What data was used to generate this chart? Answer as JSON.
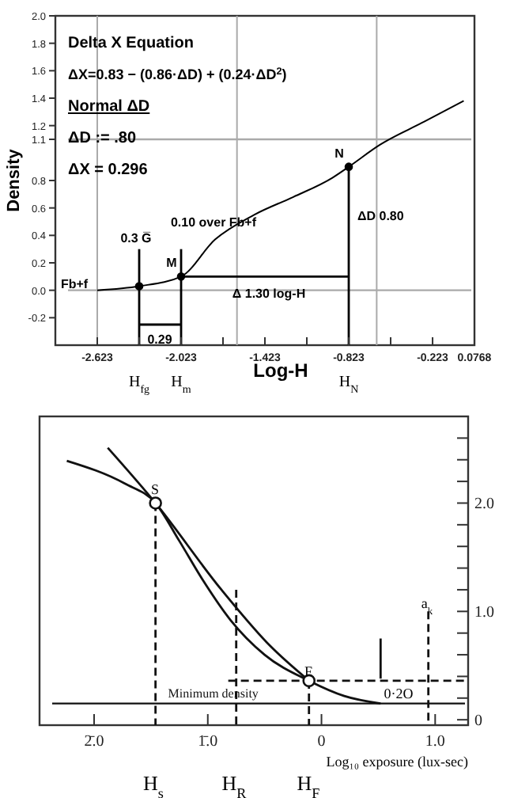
{
  "chart_data": [
    {
      "type": "line",
      "xlabel": "Log-H",
      "ylabel": "Density",
      "xlim": [
        -2.923,
        0.0768
      ],
      "ylim": [
        -0.4,
        2.0
      ],
      "xticks": [
        -2.623,
        {
          "value": -2.323,
          "label": null
        },
        -2.023,
        {
          "value": -1.723,
          "label": null
        },
        -1.423,
        {
          "value": -1.123,
          "label": null
        },
        -0.823,
        {
          "value": -0.523,
          "label": null
        },
        -0.223,
        0.0768
      ],
      "yticks": [
        -0.2,
        {
          "value": 0,
          "label": "0.0"
        },
        0.2,
        0.4,
        0.6,
        0.8,
        1.1,
        1.2,
        1.4,
        1.6,
        1.8,
        {
          "value": 2,
          "label": "2.0"
        }
      ],
      "series": [
        {
          "color": "#000000",
          "x": [
            -2.623,
            -2.323,
            -2.023,
            -1.78,
            -1.5,
            -1.22,
            -0.94,
            -0.823,
            -0.6,
            -0.3,
            0.0
          ],
          "values": [
            0.0,
            0.03,
            0.1,
            0.37,
            0.55,
            0.68,
            0.82,
            0.9,
            1.06,
            1.22,
            1.38
          ]
        },
        {
          "color": "#000000",
          "x": [
            -2.323,
            -2.323
          ],
          "values": [
            0.3,
            -0.4
          ]
        },
        {
          "color": "#000000",
          "x": [
            -2.023,
            -2.023
          ],
          "values": [
            0.3,
            -0.4
          ]
        },
        {
          "color": "#000000",
          "x": [
            -2.023,
            -0.823
          ],
          "values": [
            0.1,
            0.1
          ]
        },
        {
          "color": "#000000",
          "x": [
            -0.823,
            -0.823
          ],
          "values": [
            0.9,
            -0.4
          ]
        },
        {
          "color": "#000000",
          "x": [
            -2.323,
            -2.023
          ],
          "values": [
            -0.25,
            -0.25
          ]
        },
        {
          "type": "scatter",
          "color": "#000000",
          "marker": "circle",
          "x": [
            -2.323,
            -2.023,
            -0.823
          ],
          "values": [
            0.03,
            0.1,
            0.9
          ]
        }
      ],
      "ref_lines": [
        {
          "axis": "x",
          "value": -2.623,
          "color": "#aaaaaa"
        },
        {
          "axis": "x",
          "value": -1.623,
          "color": "#aaaaaa"
        },
        {
          "axis": "x",
          "value": -0.623,
          "color": "#aaaaaa"
        },
        {
          "axis": "y",
          "value": 1.1,
          "color": "#aaaaaa"
        },
        {
          "axis": "y",
          "value": 0.0,
          "color": "#aaaaaa"
        }
      ],
      "annotations": [
        "Delta X Equation",
        "ΔX=0.83 − (0.86·ΔD) + (0.24·ΔD$^{2}$)",
        "Normal ΔD",
        "ΔD := .80",
        "ΔX = 0.296",
        "0.10 over Fb+f",
        "0.3 G̅",
        "Fb+f",
        "0.29",
        "Δ 1.30 log-H",
        "ΔD 0.80",
        "H$_{fg}$",
        "H$_{m}$",
        "H$_{N}$",
        {
          "text": "N",
          "x": -0.823,
          "y": 0.9
        },
        {
          "text": "M",
          "x": -2.023,
          "y": 0.1
        }
      ]
    },
    {
      "type": "line",
      "xlabel": "Log₁₀ exposure (lux-sec)",
      "xlim": [
        -2.48,
        1.29
      ],
      "y2lim": [
        -0.05,
        2.8
      ],
      "xticks": [
        {
          "value": -2.0,
          "label": "2̄.0"
        },
        {
          "value": -1.0,
          "label": "1̄.0"
        },
        0,
        {
          "value": 1,
          "label": "1.0"
        }
      ],
      "y2ticks": [
        0,
        {
          "value": 0.2,
          "label": null
        },
        {
          "value": 0.4,
          "label": null
        },
        {
          "value": 0.6,
          "label": null
        },
        {
          "value": 0.8,
          "label": null
        },
        {
          "value": 1,
          "label": "1.0"
        },
        {
          "value": 1.2,
          "label": null
        },
        {
          "value": 1.4,
          "label": null
        },
        {
          "value": 1.6,
          "label": null
        },
        {
          "value": 1.8,
          "label": null
        },
        {
          "value": 2,
          "label": "2.0"
        },
        {
          "value": 2.2,
          "label": null
        },
        {
          "value": 2.4,
          "label": null
        },
        {
          "value": 2.6,
          "label": null
        }
      ],
      "series": [
        {
          "axis": "y2",
          "color": "#111111",
          "x": [
            -2.24,
            -1.73,
            -1.46,
            -1.25,
            -1.05,
            -0.8,
            -0.5,
            -0.11,
            0.2,
            0.52
          ],
          "values": [
            2.39,
            2.18,
            2.0,
            1.65,
            1.3,
            0.92,
            0.6,
            0.36,
            0.22,
            0.15
          ]
        },
        {
          "axis": "y2",
          "color": "#111111",
          "x": [
            -1.88,
            -1.46,
            -0.88,
            -0.45,
            -0.11
          ],
          "values": [
            2.51,
            2.0,
            1.2,
            0.68,
            0.36
          ]
        },
        {
          "axis": "y2",
          "color": "#111111",
          "line_style": "dashed",
          "x": [
            -1.46,
            -1.46
          ],
          "values": [
            2.0,
            -0.05
          ]
        },
        {
          "axis": "y2",
          "color": "#111111",
          "line_style": "dashed",
          "x": [
            -0.75,
            -0.75
          ],
          "values": [
            1.2,
            -0.05
          ]
        },
        {
          "axis": "y2",
          "color": "#111111",
          "line_style": "dashed",
          "x": [
            -0.11,
            -0.11
          ],
          "values": [
            0.36,
            -0.05
          ]
        },
        {
          "axis": "y2",
          "color": "#111111",
          "line_style": "dashed",
          "x": [
            -0.82,
            1.29
          ],
          "values": [
            0.36,
            0.36
          ]
        },
        {
          "axis": "y2",
          "color": "#111111",
          "line_style": "dashed",
          "x": [
            0.94,
            0.94
          ],
          "values": [
            1.0,
            -0.05
          ]
        },
        {
          "axis": "y2",
          "color": "#111111",
          "x": [
            0.52,
            0.52
          ],
          "values": [
            0.75,
            0.38
          ]
        },
        {
          "type": "scatter",
          "axis": "y2",
          "color": "#111111",
          "marker": "circle",
          "x": [
            -1.46,
            -0.11
          ],
          "values": [
            2.0,
            0.36
          ]
        }
      ],
      "ref_lines": [
        {
          "axis": "y2",
          "value": 0.15,
          "label": "Minimum density",
          "color": "#111111"
        }
      ],
      "annotations": [
        "S",
        "F",
        "0·2O",
        "a$_{k}$",
        "H$_{s}$",
        "H$_{R}$",
        "H$_{F}$"
      ]
    }
  ]
}
